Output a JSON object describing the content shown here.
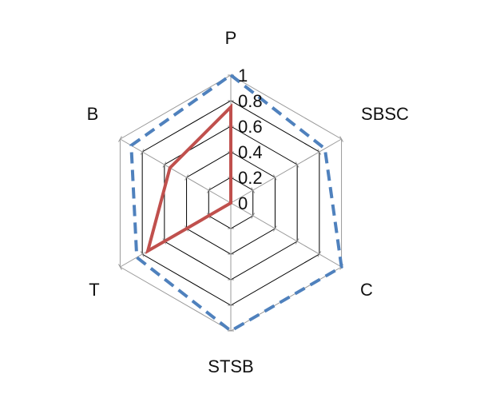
{
  "chart_data": {
    "type": "radar",
    "categories": [
      "P",
      "SBSC",
      "C",
      "STSB",
      "T",
      "B"
    ],
    "r_ticks": [
      "0",
      "0.2",
      "0.4",
      "0.6",
      "0.8",
      "1"
    ],
    "rlim": [
      0,
      1
    ],
    "grid": true,
    "legend": "none",
    "series": [
      {
        "values": [
          1.0,
          0.85,
          1.0,
          1.0,
          0.85,
          0.9
        ],
        "color": "#4F81BD",
        "line_style": "dashed"
      },
      {
        "values": [
          0.75,
          0.0,
          0.0,
          0.0,
          0.75,
          0.55
        ],
        "color": "#C0504D",
        "line_style": "solid"
      }
    ]
  }
}
